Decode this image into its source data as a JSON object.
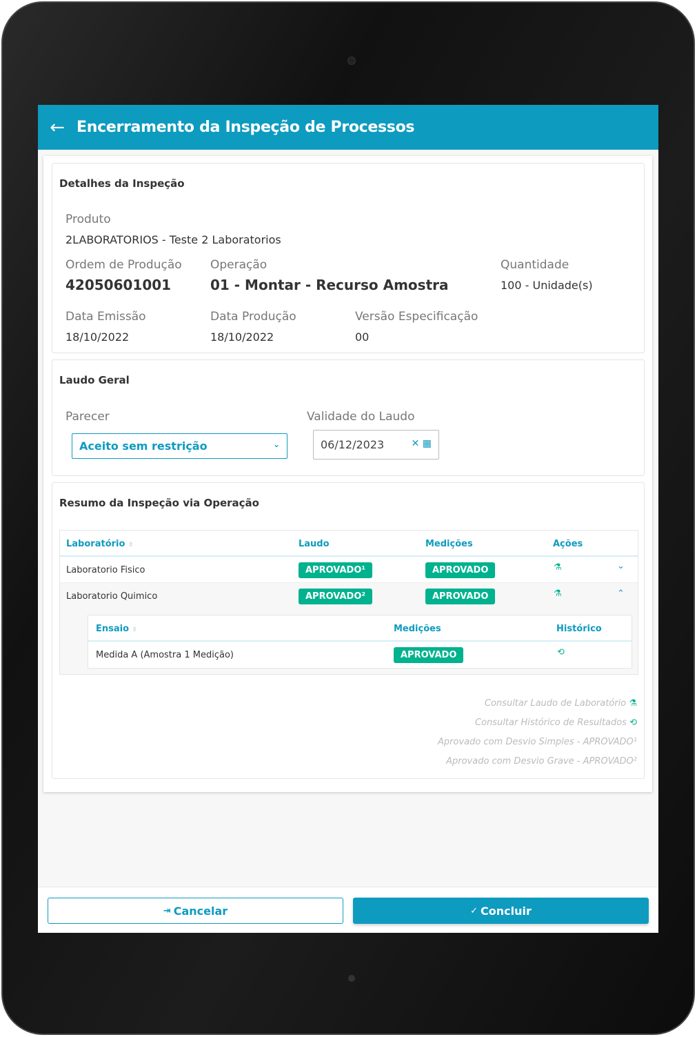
{
  "header": {
    "title": "Encerramento da Inspeção de Processos",
    "back_icon": "arrow-left-icon"
  },
  "details": {
    "title": "Detalhes da Inspeção",
    "produto_label": "Produto",
    "produto": "2LABORATORIOS - Teste 2 Laboratorios",
    "ordem_label": "Ordem de Produção",
    "ordem": "42050601001",
    "operacao_label": "Operação",
    "operacao": "01 - Montar - Recurso Amostra",
    "quantidade_label": "Quantidade",
    "quantidade": "100 - Unidade(s)",
    "emissao_label": "Data Emissão",
    "emissao": "18/10/2022",
    "producao_label": "Data Produção",
    "producao": "18/10/2022",
    "versao_label": "Versão Especificação",
    "versao": "00"
  },
  "laudo": {
    "title": "Laudo Geral",
    "parecer_label": "Parecer",
    "parecer": "Aceito sem restrição",
    "validade_label": "Validade do Laudo",
    "validade": "06/12/2023"
  },
  "resumo": {
    "title": "Resumo da Inspeção via Operação",
    "columns": [
      "Laboratório",
      "Laudo",
      "Medições",
      "Ações"
    ],
    "rows": [
      {
        "lab": "Laboratorio Fisico",
        "laudo": "APROVADO¹",
        "medicoes": "APROVADO",
        "expanded": false
      },
      {
        "lab": "Laboratorio Quimico",
        "laudo": "APROVADO²",
        "medicoes": "APROVADO",
        "expanded": true
      }
    ],
    "sub_columns": [
      "Ensaio",
      "Medições",
      "Histórico"
    ],
    "sub_rows": [
      {
        "ensaio": "Medida A (Amostra 1 Medição)",
        "medicoes": "APROVADO"
      }
    ],
    "legend": [
      "Consultar Laudo de Laboratório",
      "Consultar Histórico de Resultados",
      "Aprovado com Desvio Simples - APROVADO¹",
      "Aprovado com Desvio Grave - APROVADO²"
    ]
  },
  "footer": {
    "cancel": "Cancelar",
    "confirm": "Concluir"
  },
  "colors": {
    "primary": "#0e9bc0",
    "success": "#00b28e"
  }
}
